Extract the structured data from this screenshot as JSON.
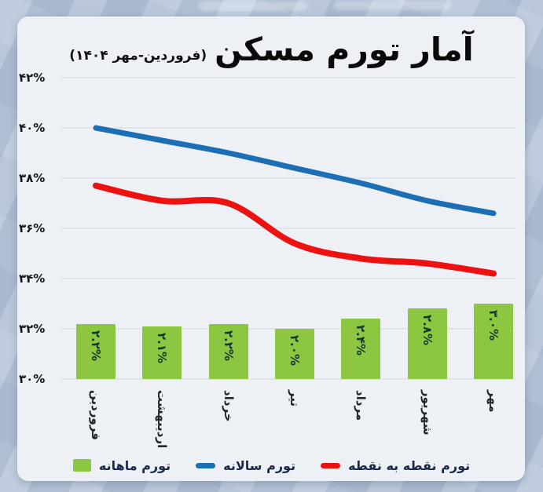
{
  "header": {
    "title": "آمار تورم مسکن",
    "subtitle": "(فروردین-مهر ۱۴۰۴)"
  },
  "colors": {
    "background": "#b5c4d9",
    "card": "#edf0f5",
    "gridline": "#e0e3e9",
    "bar_green": "#8dc742",
    "line_blue": "#1d6fb5",
    "line_red": "#ec1212"
  },
  "chart_data": {
    "type": "bar",
    "note": "combo chart: monthly inflation bars stacked above 30% baseline, plus two line series",
    "categories": [
      "فروردین",
      "اردیبهشت",
      "خرداد",
      "تیر",
      "مرداد",
      "شهریور",
      "مهر"
    ],
    "series": [
      {
        "name": "تورم ماهانه",
        "type": "bar",
        "color": "#8dc742",
        "values": [
          2.2,
          2.1,
          2.2,
          2.0,
          2.4,
          2.8,
          3.0
        ],
        "labels": [
          "۲.۲%",
          "۲.۱%",
          "۲.۲%",
          "۲.۰%",
          "۲.۴%",
          "۲.۸%",
          "۳.۰%"
        ],
        "bar_base_percent": 30
      },
      {
        "name": "تورم سالانه",
        "type": "line",
        "color": "#1d6fb5",
        "values": [
          40.0,
          39.5,
          39.0,
          38.4,
          37.8,
          37.1,
          36.6
        ]
      },
      {
        "name": "تورم نقطه به نقطه",
        "type": "line",
        "color": "#ec1212",
        "values": [
          37.7,
          37.1,
          37.0,
          35.4,
          34.8,
          34.6,
          34.2
        ]
      }
    ],
    "title": "آمار تورم مسکن",
    "subtitle": "(فروردین-مهر ۱۴۰۴)",
    "xlabel": "",
    "ylabel": "",
    "ylim": [
      30,
      42
    ],
    "grid": true,
    "legend_position": "bottom",
    "y_ticks": {
      "values": [
        42,
        40,
        38,
        36,
        34,
        32,
        30
      ],
      "labels": [
        "۴۲%",
        "۴۰%",
        "۳۸%",
        "۳۶%",
        "۳۴%",
        "۳۲%",
        "۳۰%"
      ]
    }
  }
}
